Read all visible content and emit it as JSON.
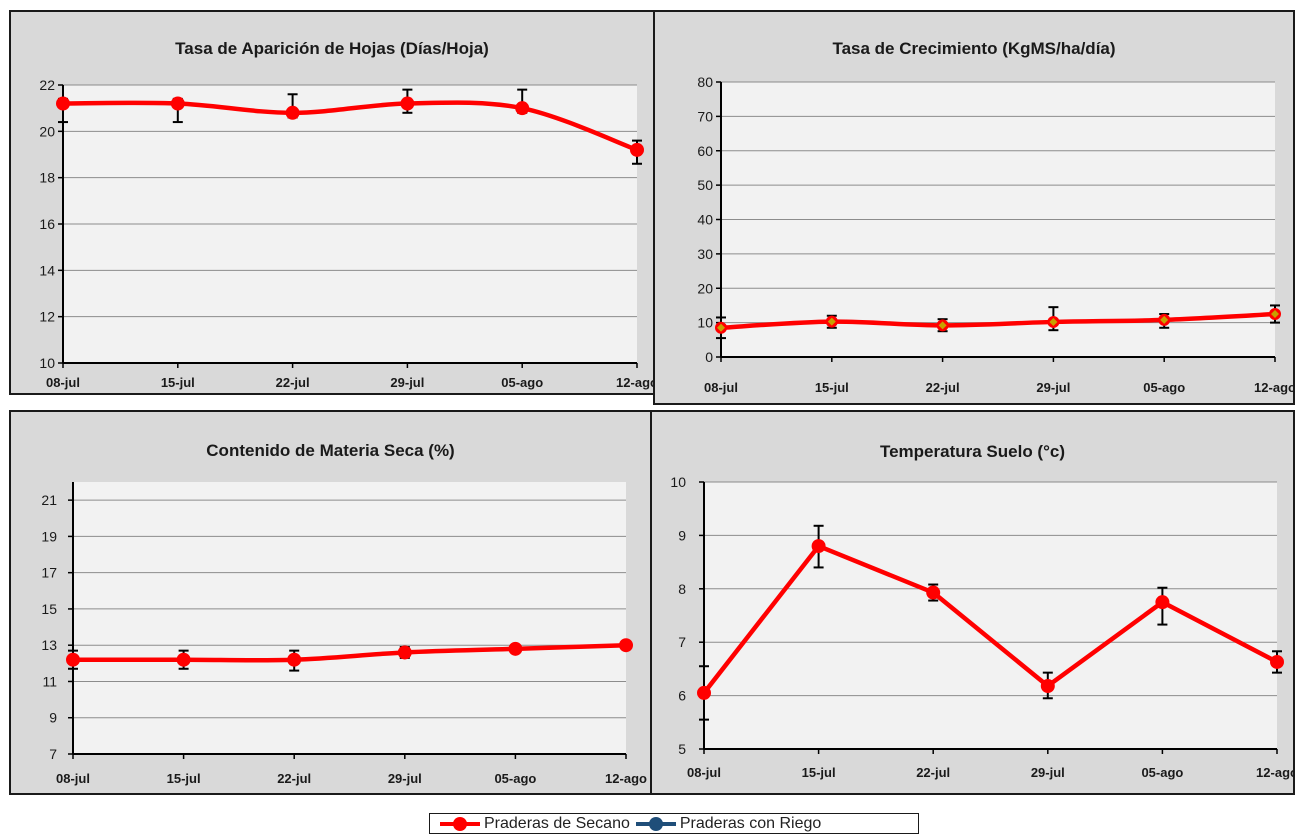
{
  "chart_data": [
    {
      "type": "line",
      "title": "Tasa de Aparición de Hojas (Días/Hoja)",
      "categories": [
        "08-jul",
        "15-jul",
        "22-jul",
        "29-jul",
        "05-ago",
        "12-ago"
      ],
      "yticks": [
        "10",
        "12",
        "14",
        "16",
        "18",
        "20",
        "22"
      ],
      "ylim": [
        10,
        22
      ],
      "grid": true,
      "series": [
        {
          "name": "Praderas de Secano",
          "color": "#ff0000",
          "marker": "circle",
          "values": [
            21.2,
            21.2,
            20.8,
            21.2,
            21.0,
            19.2
          ],
          "err_low": [
            20.4,
            20.4,
            20.6,
            20.8,
            20.8,
            18.6
          ],
          "err_high": [
            21.4,
            21.4,
            21.6,
            21.8,
            21.8,
            19.6
          ]
        }
      ]
    },
    {
      "type": "line",
      "title": "Tasa de Crecimiento (KgMS/ha/día)",
      "categories": [
        "08-jul",
        "15-jul",
        "22-jul",
        "29-jul",
        "05-ago",
        "12-ago"
      ],
      "yticks": [
        "0",
        "10",
        "20",
        "30",
        "40",
        "50",
        "60",
        "70",
        "80"
      ],
      "ylim": [
        0,
        80
      ],
      "grid": true,
      "series": [
        {
          "name": "Praderas de Secano",
          "color": "#ff0000",
          "marker": "diamond",
          "values": [
            8.5,
            10.3,
            9.2,
            10.2,
            10.8,
            12.5
          ],
          "err_low": [
            5.5,
            8.5,
            7.5,
            7.8,
            8.5,
            10.0
          ],
          "err_high": [
            11.5,
            12.0,
            11.0,
            14.5,
            12.5,
            15.0
          ]
        }
      ]
    },
    {
      "type": "line",
      "title": "Contenido de Materia Seca (%)",
      "categories": [
        "08-jul",
        "15-jul",
        "22-jul",
        "29-jul",
        "05-ago",
        "12-ago"
      ],
      "yticks": [
        "7",
        "9",
        "11",
        "13",
        "15",
        "17",
        "19",
        "21"
      ],
      "ylim": [
        7,
        22
      ],
      "grid": true,
      "series": [
        {
          "name": "Praderas de Secano",
          "color": "#ff0000",
          "marker": "circle",
          "values": [
            12.2,
            12.2,
            12.2,
            12.6,
            12.8,
            13.0
          ],
          "err_low": [
            11.7,
            11.7,
            11.6,
            12.3,
            12.6,
            12.8
          ],
          "err_high": [
            12.7,
            12.7,
            12.7,
            12.9,
            13.0,
            13.2
          ]
        }
      ]
    },
    {
      "type": "line",
      "title": "Temperatura Suelo (°c)",
      "categories": [
        "08-jul",
        "15-jul",
        "22-jul",
        "29-jul",
        "05-ago",
        "12-ago"
      ],
      "yticks": [
        "5",
        "6",
        "7",
        "8",
        "9",
        "10"
      ],
      "ylim": [
        5,
        10
      ],
      "grid": true,
      "series": [
        {
          "name": "Praderas de Secano",
          "color": "#ff0000",
          "marker": "circle",
          "values": [
            6.05,
            8.8,
            7.93,
            6.18,
            7.75,
            6.63
          ],
          "err_low": [
            5.55,
            8.4,
            7.78,
            5.95,
            7.33,
            6.43
          ],
          "err_high": [
            6.55,
            9.18,
            8.08,
            6.43,
            8.02,
            6.83
          ]
        }
      ]
    }
  ],
  "legend": {
    "placement": "bottom-center",
    "items": [
      {
        "label": "Praderas de Secano",
        "color": "#ff0000"
      },
      {
        "label": "Praderas con Riego",
        "color": "#1f4e79"
      }
    ]
  }
}
